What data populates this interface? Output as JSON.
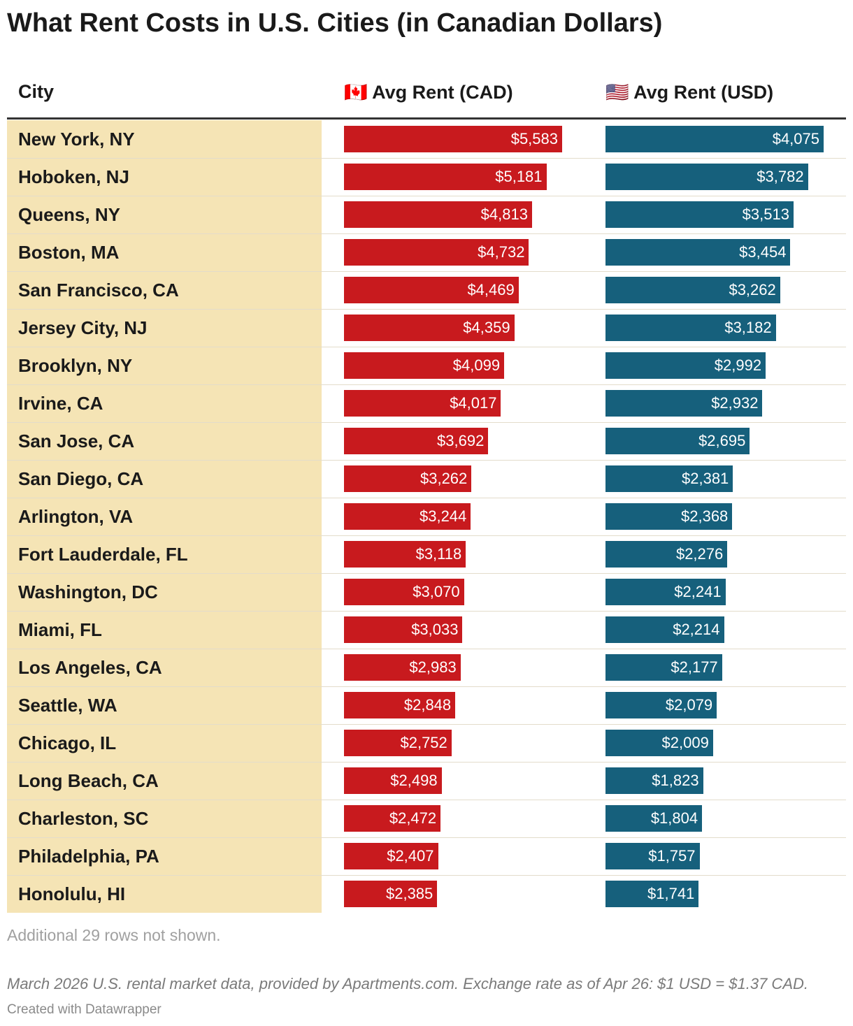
{
  "title": "What Rent Costs in U.S. Cities (in Canadian Dollars)",
  "table": {
    "columns": [
      "City",
      "🇨🇦 Avg Rent (CAD)",
      "🇺🇸 Avg Rent (USD)"
    ],
    "colors": [
      "#c81a1e",
      "#16607c"
    ],
    "rows": [
      {
        "city": "New York, NY",
        "cad": 5583,
        "cad_label": "$5,583",
        "usd": 4075,
        "usd_label": "$4,075"
      },
      {
        "city": "Hoboken, NJ",
        "cad": 5181,
        "cad_label": "$5,181",
        "usd": 3782,
        "usd_label": "$3,782"
      },
      {
        "city": "Queens, NY",
        "cad": 4813,
        "cad_label": "$4,813",
        "usd": 3513,
        "usd_label": "$3,513"
      },
      {
        "city": "Boston, MA",
        "cad": 4732,
        "cad_label": "$4,732",
        "usd": 3454,
        "usd_label": "$3,454"
      },
      {
        "city": "San Francisco, CA",
        "cad": 4469,
        "cad_label": "$4,469",
        "usd": 3262,
        "usd_label": "$3,262"
      },
      {
        "city": "Jersey City, NJ",
        "cad": 4359,
        "cad_label": "$4,359",
        "usd": 3182,
        "usd_label": "$3,182"
      },
      {
        "city": "Brooklyn, NY",
        "cad": 4099,
        "cad_label": "$4,099",
        "usd": 2992,
        "usd_label": "$2,992"
      },
      {
        "city": "Irvine, CA",
        "cad": 4017,
        "cad_label": "$4,017",
        "usd": 2932,
        "usd_label": "$2,932"
      },
      {
        "city": "San Jose, CA",
        "cad": 3692,
        "cad_label": "$3,692",
        "usd": 2695,
        "usd_label": "$2,695"
      },
      {
        "city": "San Diego, CA",
        "cad": 3262,
        "cad_label": "$3,262",
        "usd": 2381,
        "usd_label": "$2,381"
      },
      {
        "city": "Arlington, VA",
        "cad": 3244,
        "cad_label": "$3,244",
        "usd": 2368,
        "usd_label": "$2,368"
      },
      {
        "city": "Fort Lauderdale, FL",
        "cad": 3118,
        "cad_label": "$3,118",
        "usd": 2276,
        "usd_label": "$2,276"
      },
      {
        "city": "Washington, DC",
        "cad": 3070,
        "cad_label": "$3,070",
        "usd": 2241,
        "usd_label": "$2,241"
      },
      {
        "city": "Miami, FL",
        "cad": 3033,
        "cad_label": "$3,033",
        "usd": 2214,
        "usd_label": "$2,214"
      },
      {
        "city": "Los Angeles, CA",
        "cad": 2983,
        "cad_label": "$2,983",
        "usd": 2177,
        "usd_label": "$2,177"
      },
      {
        "city": "Seattle, WA",
        "cad": 2848,
        "cad_label": "$2,848",
        "usd": 2079,
        "usd_label": "$2,079"
      },
      {
        "city": "Chicago, IL",
        "cad": 2752,
        "cad_label": "$2,752",
        "usd": 2009,
        "usd_label": "$2,009"
      },
      {
        "city": "Long Beach, CA",
        "cad": 2498,
        "cad_label": "$2,498",
        "usd": 1823,
        "usd_label": "$1,823"
      },
      {
        "city": "Charleston, SC",
        "cad": 2472,
        "cad_label": "$2,472",
        "usd": 1804,
        "usd_label": "$1,804"
      },
      {
        "city": "Philadelphia, PA",
        "cad": 2407,
        "cad_label": "$2,407",
        "usd": 1757,
        "usd_label": "$1,757"
      },
      {
        "city": "Honolulu, HI",
        "cad": 2385,
        "cad_label": "$2,385",
        "usd": 1741,
        "usd_label": "$1,741"
      }
    ],
    "more_rows": "Additional 29 rows not shown."
  },
  "note": "March 2026 U.S. rental market data, provided by Apartments.com. Exchange rate as of Apr 26: $1 USD = $1.37 CAD.",
  "credit": "Created with Datawrapper"
}
